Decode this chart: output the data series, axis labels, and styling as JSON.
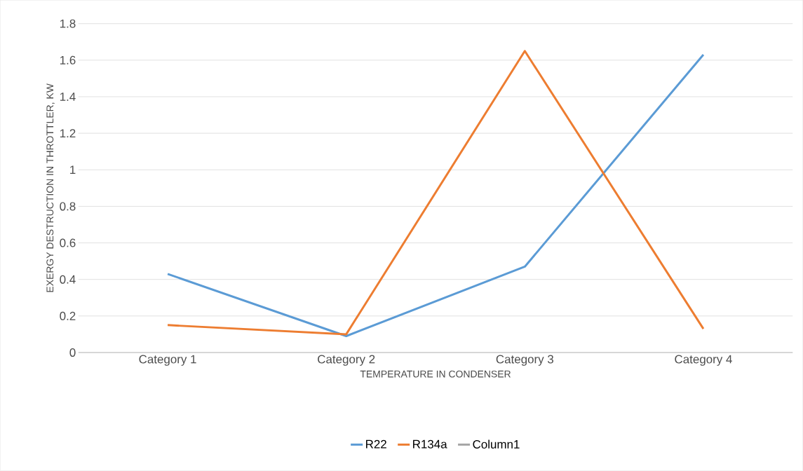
{
  "chart_data": {
    "type": "line",
    "xlabel": "TEMPERATURE IN CONDENSER",
    "ylabel": "EXERGY DESTRUCTION IN THROTTLER, KW",
    "categories": [
      "Category 1",
      "Category 2",
      "Category 3",
      "Category 4"
    ],
    "series": [
      {
        "name": "R22",
        "color": "#5b9bd5",
        "values": [
          0.43,
          0.09,
          0.47,
          1.63
        ]
      },
      {
        "name": "R134a",
        "color": "#ed7d31",
        "values": [
          0.15,
          0.1,
          1.65,
          0.13
        ]
      },
      {
        "name": "Column1",
        "color": "#a5a5a5",
        "values": [
          null,
          null,
          null,
          null
        ]
      }
    ],
    "ylim": [
      0,
      1.8
    ],
    "yticks": [
      0,
      0.2,
      0.4,
      0.6,
      0.8,
      1,
      1.2,
      1.4,
      1.6,
      1.8
    ],
    "grid": "y",
    "legend": "bottom",
    "marker": "none",
    "line_style": "solid"
  }
}
